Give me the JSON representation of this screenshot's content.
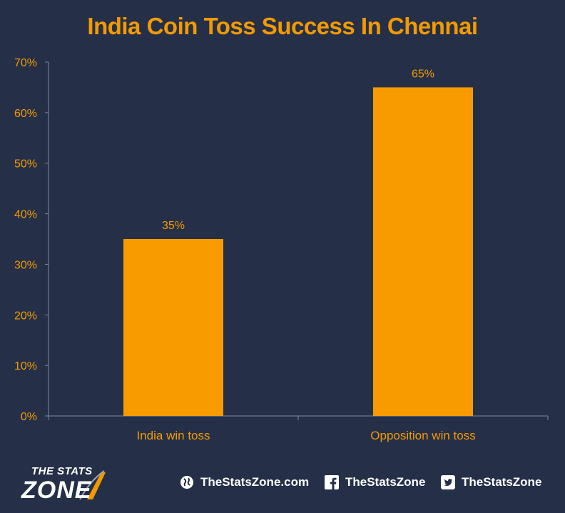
{
  "chart_data": {
    "type": "bar",
    "title": "India Coin Toss Success In Chennai",
    "categories": [
      "India win toss",
      "Opposition win toss"
    ],
    "values": [
      35,
      65
    ],
    "data_labels": [
      "35%",
      "65%"
    ],
    "ylim": [
      0,
      70
    ],
    "yticks": [
      0,
      10,
      20,
      30,
      40,
      50,
      60,
      70
    ],
    "ytick_labels": [
      "0%",
      "10%",
      "20%",
      "30%",
      "40%",
      "50%",
      "60%",
      "70%"
    ],
    "grid": false,
    "legend": "none",
    "bar_color": "#f79b00"
  },
  "colors": {
    "background": "#253048",
    "accent": "#f39a00",
    "axis": "#7f8799",
    "text": "#ffffff"
  },
  "footer": {
    "logo_top": "THE STATS",
    "logo_bottom": "ZONE",
    "website": "TheStatsZone.com",
    "facebook": "TheStatsZone",
    "twitter": "TheStatsZone",
    "icons": [
      "globe-icon",
      "facebook-icon",
      "twitter-icon"
    ]
  }
}
